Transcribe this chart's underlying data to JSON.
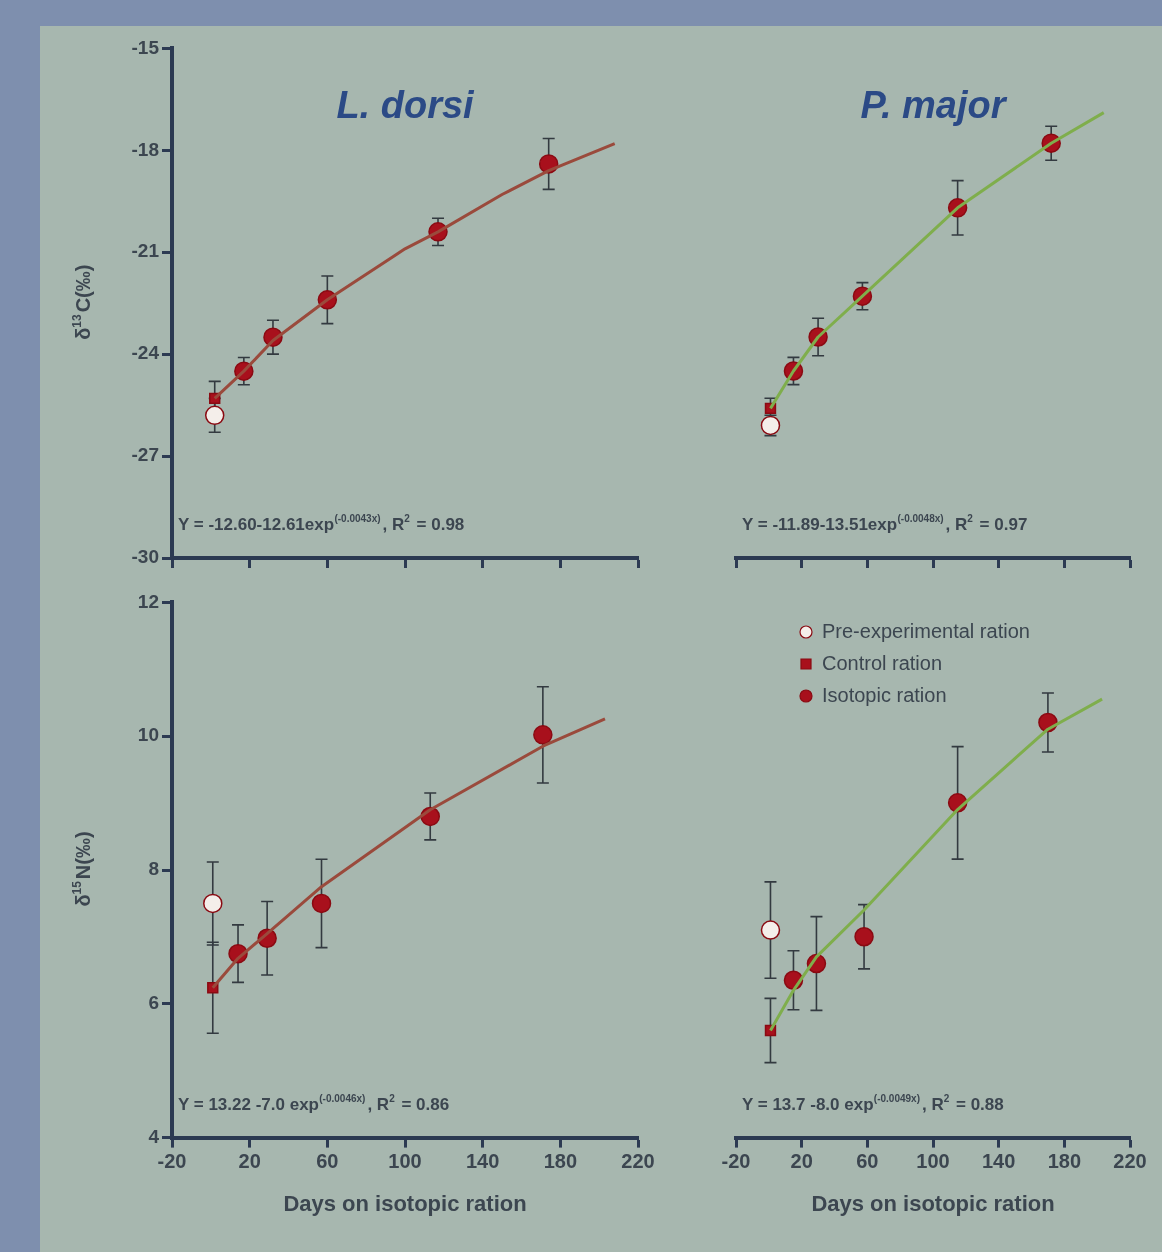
{
  "chart_data": [
    {
      "type": "scatter",
      "title": "L. dorsi",
      "ylabel": "δ$^{13}$C(‰)",
      "xlim": [
        -20,
        220
      ],
      "xticks": [
        -20,
        20,
        60,
        100,
        140,
        180,
        220
      ],
      "ylim": [
        -30,
        -15
      ],
      "yticks": [
        -15,
        -18,
        -21,
        -24,
        -27,
        -30
      ],
      "tick_labels": "y",
      "annotations": [
        "Y = -12.60-12.61exp$^{(-0.0043x)}$, R$^{2}$ = 0.98"
      ],
      "series": [
        {
          "type": "scatter",
          "marker": "circle",
          "color": "#f4eeea",
          "x": [
            2
          ],
          "values": [
            -25.8
          ],
          "errors": [
            0.5
          ]
        },
        {
          "type": "scatter",
          "marker": "square",
          "color": "#a8101c",
          "x": [
            2
          ],
          "values": [
            -25.3
          ],
          "errors": [
            0.5
          ]
        },
        {
          "type": "scatter",
          "marker": "circle",
          "color": "#a8101c",
          "x": [
            17,
            32,
            60,
            117,
            174
          ],
          "values": [
            -24.5,
            -23.5,
            -22.4,
            -20.4,
            -18.4
          ],
          "errors": [
            0.4,
            0.5,
            0.7,
            0.4,
            0.75
          ]
        },
        {
          "type": "line",
          "marker": "none",
          "line_style": "solid",
          "color": "#9a4a3c",
          "x": [
            2,
            17,
            32,
            60,
            100,
            117,
            150,
            174,
            208
          ],
          "values": [
            -25.3,
            -24.5,
            -23.6,
            -22.4,
            -20.9,
            -20.4,
            -19.3,
            -18.6,
            -17.8
          ]
        }
      ]
    },
    {
      "type": "scatter",
      "title": "P. major",
      "xlim": [
        -20,
        220
      ],
      "xticks": [
        -20,
        20,
        60,
        100,
        140,
        180,
        220
      ],
      "ylim": [
        -30,
        -15
      ],
      "tick_labels": false,
      "annotations": [
        "Y = -11.89-13.51exp$^{(-0.0048x)}$, R$^{2}$ = 0.97"
      ],
      "series": [
        {
          "type": "scatter",
          "marker": "circle",
          "color": "#f4eeea",
          "x": [
            1
          ],
          "values": [
            -26.1
          ],
          "errors": [
            0.3
          ]
        },
        {
          "type": "scatter",
          "marker": "square",
          "color": "#a8101c",
          "x": [
            1
          ],
          "values": [
            -25.6
          ],
          "errors": [
            0.3
          ]
        },
        {
          "type": "scatter",
          "marker": "circle",
          "color": "#a8101c",
          "x": [
            15,
            30,
            57,
            115,
            172
          ],
          "values": [
            -24.5,
            -23.5,
            -22.3,
            -19.7,
            -17.8
          ],
          "errors": [
            0.4,
            0.55,
            0.4,
            0.8,
            0.5
          ]
        },
        {
          "type": "line",
          "marker": "none",
          "line_style": "solid",
          "color": "#7fae4c",
          "x": [
            1,
            15,
            30,
            57,
            115,
            172,
            204
          ],
          "values": [
            -25.6,
            -24.5,
            -23.5,
            -22.3,
            -19.7,
            -17.8,
            -16.9
          ]
        }
      ]
    },
    {
      "type": "scatter",
      "xlabel": "Days on isotopic ration",
      "ylabel": "δ$^{15}$N(‰)",
      "xlim": [
        -20,
        220
      ],
      "xticks": [
        -20,
        20,
        60,
        100,
        140,
        180,
        220
      ],
      "ylim": [
        4,
        12
      ],
      "yticks": [
        4,
        6,
        8,
        10,
        12
      ],
      "annotations": [
        "Y = 13.22 -7.0 exp$^{(-0.0046x)}$, R$^{2}$ = 0.86"
      ],
      "series": [
        {
          "type": "scatter",
          "marker": "circle",
          "color": "#f4eeea",
          "x": [
            1
          ],
          "values": [
            7.5
          ],
          "errors": [
            0.62
          ]
        },
        {
          "type": "scatter",
          "marker": "square",
          "color": "#a8101c",
          "x": [
            1
          ],
          "values": [
            6.24
          ],
          "errors": [
            0.68
          ]
        },
        {
          "type": "scatter",
          "marker": "circle",
          "color": "#a8101c",
          "x": [
            14,
            29,
            57,
            113,
            171
          ],
          "values": [
            6.75,
            6.98,
            7.5,
            8.8,
            10.02
          ],
          "errors": [
            0.43,
            0.55,
            0.66,
            0.35,
            0.72
          ]
        },
        {
          "type": "line",
          "marker": "none",
          "line_style": "solid",
          "color": "#9a4a3c",
          "x": [
            1,
            14,
            29,
            57,
            113,
            171,
            203
          ],
          "values": [
            6.24,
            6.68,
            7.05,
            7.75,
            8.9,
            9.85,
            10.26
          ]
        }
      ]
    },
    {
      "type": "scatter",
      "xlabel": "Days on isotopic ration",
      "xlim": [
        -20,
        220
      ],
      "xticks": [
        -20,
        20,
        60,
        100,
        140,
        180,
        220
      ],
      "ylim": [
        4,
        12
      ],
      "tick_labels": "x",
      "legend": "top left",
      "annotations": [
        "Y = 13.7 -8.0 exp$^{(-0.0049x)}$, R$^{2}$ = 0.88"
      ],
      "series": [
        {
          "type": "scatter",
          "name": "Pre-experimental ration",
          "marker": "circle",
          "color": "#f4eeea",
          "x": [
            1
          ],
          "values": [
            7.1
          ],
          "errors": [
            0.72
          ]
        },
        {
          "type": "scatter",
          "name": "Control ration",
          "marker": "square",
          "color": "#a8101c",
          "x": [
            1
          ],
          "values": [
            5.6
          ],
          "errors": [
            0.48
          ]
        },
        {
          "type": "scatter",
          "name": "Isotopic ration",
          "marker": "circle",
          "color": "#a8101c",
          "x": [
            15,
            29,
            58,
            115,
            170
          ],
          "values": [
            6.35,
            6.6,
            7.0,
            9.0,
            10.2
          ],
          "errors": [
            0.44,
            0.7,
            0.48,
            0.84,
            0.44
          ]
        },
        {
          "type": "line",
          "marker": "none",
          "line_style": "solid",
          "color": "#7fae4c",
          "x": [
            1,
            15,
            29,
            58,
            115,
            170,
            203
          ],
          "values": [
            5.6,
            6.2,
            6.7,
            7.4,
            8.9,
            10.1,
            10.55
          ]
        }
      ]
    }
  ]
}
